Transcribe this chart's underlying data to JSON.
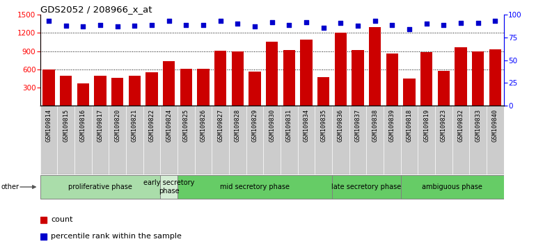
{
  "title": "GDS2052 / 208966_x_at",
  "categories": [
    "GSM109814",
    "GSM109815",
    "GSM109816",
    "GSM109817",
    "GSM109820",
    "GSM109821",
    "GSM109822",
    "GSM109824",
    "GSM109825",
    "GSM109826",
    "GSM109827",
    "GSM109828",
    "GSM109829",
    "GSM109830",
    "GSM109831",
    "GSM109834",
    "GSM109835",
    "GSM109836",
    "GSM109837",
    "GSM109838",
    "GSM109839",
    "GSM109818",
    "GSM109819",
    "GSM109823",
    "GSM109832",
    "GSM109833",
    "GSM109840"
  ],
  "counts": [
    600,
    490,
    370,
    490,
    455,
    500,
    555,
    740,
    610,
    610,
    910,
    895,
    565,
    1060,
    920,
    1090,
    470,
    1200,
    920,
    1300,
    865,
    450,
    880,
    575,
    970,
    895,
    930
  ],
  "percentile_ranks": [
    93,
    88,
    87,
    89,
    87,
    88,
    89,
    93,
    89,
    89,
    93,
    90,
    87,
    92,
    89,
    92,
    86,
    91,
    88,
    93,
    89,
    84,
    90,
    89,
    91,
    91,
    93
  ],
  "phases": [
    {
      "label": "proliferative phase",
      "start": 0,
      "end": 7,
      "color": "#aaddaa"
    },
    {
      "label": "early secretory\nphase",
      "start": 7,
      "end": 8,
      "color": "#d4edd4"
    },
    {
      "label": "mid secretory phase",
      "start": 8,
      "end": 17,
      "color": "#66cc66"
    },
    {
      "label": "late secretory phase",
      "start": 17,
      "end": 21,
      "color": "#66cc66"
    },
    {
      "label": "ambiguous phase",
      "start": 21,
      "end": 27,
      "color": "#66cc66"
    }
  ],
  "bar_color": "#cc0000",
  "dot_color": "#0000cc",
  "ylim_left": [
    0,
    1500
  ],
  "ylim_right": [
    0,
    100
  ],
  "yticks_left": [
    300,
    600,
    900,
    1200,
    1500
  ],
  "yticks_right": [
    0,
    25,
    50,
    75,
    100
  ],
  "cell_bg": "#cccccc",
  "plot_bg": "#ffffff"
}
